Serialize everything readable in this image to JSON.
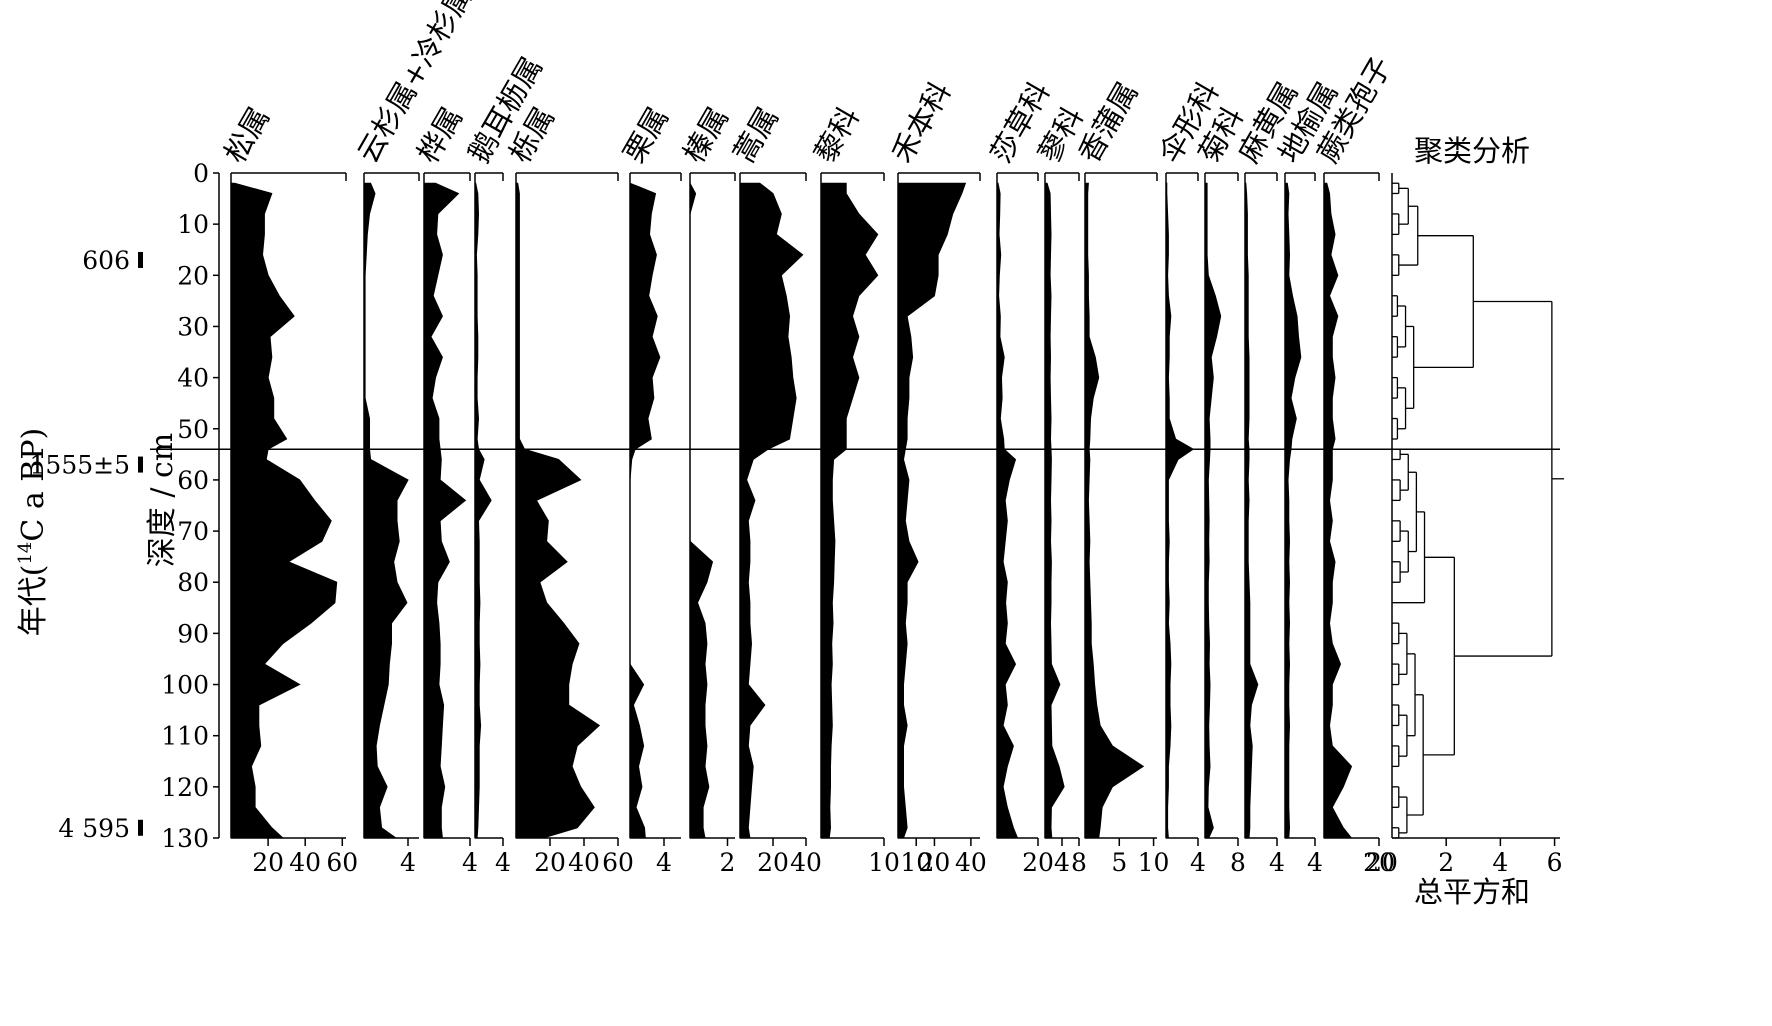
{
  "chart_data": {
    "type": "area",
    "age_axis_label": "年代(¹⁴C a BP)",
    "age_axis_label_parts": [
      "年代(",
      "14",
      "C a BP)"
    ],
    "age_markers": [
      {
        "label": "606",
        "depth": 17
      },
      {
        "label": "1555±5",
        "depth": 57
      },
      {
        "label": "4 595",
        "depth": 128
      }
    ],
    "depth_label": "深度 / cm",
    "depth_ticks": [
      0,
      10,
      20,
      30,
      40,
      50,
      60,
      70,
      80,
      90,
      100,
      110,
      120,
      130
    ],
    "depth_range": [
      0,
      130
    ],
    "zone_boundary_depth": 54,
    "depths": [
      2,
      4,
      8,
      12,
      16,
      20,
      24,
      28,
      32,
      36,
      40,
      44,
      48,
      52,
      54,
      56,
      60,
      64,
      68,
      72,
      76,
      80,
      84,
      88,
      92,
      96,
      100,
      104,
      108,
      112,
      116,
      120,
      124,
      128,
      130
    ],
    "taxa": [
      {
        "name": "松属",
        "xlim": [
          0,
          62
        ],
        "ticks": [
          20,
          40,
          60
        ],
        "values": [
          2,
          22,
          18,
          18,
          17,
          20,
          26,
          34,
          21,
          22,
          20,
          23,
          23,
          30,
          20,
          19,
          37,
          45,
          54,
          49,
          31,
          57,
          56,
          43,
          28,
          18,
          37,
          15,
          15,
          16,
          11,
          13,
          13,
          22,
          28
        ]
      },
      {
        "name": "云杉属+冷杉属",
        "xlim": [
          0,
          5
        ],
        "ticks": [
          4
        ],
        "values": [
          0.6,
          1,
          0.5,
          0.3,
          0.2,
          0.1,
          0.1,
          0.1,
          0.1,
          0.1,
          0.1,
          0.1,
          0.5,
          0.5,
          0.5,
          0.6,
          4,
          3,
          3,
          3.2,
          2.7,
          3,
          3.9,
          2.5,
          2.5,
          2.3,
          2.2,
          1.8,
          1.4,
          1.1,
          1.2,
          2.1,
          1.4,
          1.6,
          2.9
        ]
      },
      {
        "name": "桦属",
        "xlim": [
          0,
          4
        ],
        "ticks": [
          4
        ],
        "values": [
          1,
          3,
          1.2,
          1.1,
          1.6,
          1.2,
          0.8,
          1.6,
          0.6,
          1.6,
          1,
          0.7,
          1.3,
          1.3,
          1.4,
          1.5,
          1.4,
          3.6,
          1.4,
          1.5,
          2.2,
          1.2,
          1.1,
          1.3,
          1.4,
          1.4,
          1.3,
          1.7,
          1.6,
          1.5,
          1.4,
          1.8,
          1.5,
          1.5,
          1.6
        ]
      },
      {
        "name": "鹅耳枥属",
        "xlim": [
          0,
          4
        ],
        "ticks": [
          4
        ],
        "values": [
          0.1,
          0.4,
          0.5,
          0.4,
          0.2,
          0.3,
          0.3,
          0.3,
          0.4,
          0.4,
          0.3,
          0.3,
          0.5,
          0.3,
          0.5,
          1.3,
          0.6,
          2.3,
          0.5,
          0.6,
          0.6,
          0.6,
          0.7,
          0.6,
          0.6,
          0.7,
          0.6,
          0.6,
          0.8,
          0.6,
          0.6,
          0.6,
          0.5,
          0.4,
          0.3
        ]
      },
      {
        "name": "栎属",
        "xlim": [
          0,
          60
        ],
        "ticks": [
          20,
          40,
          60
        ],
        "values": [
          1,
          2,
          2,
          2,
          2,
          2,
          2,
          2,
          2,
          2,
          2,
          2,
          2,
          2,
          5,
          25,
          38,
          12,
          19,
          18,
          30,
          14,
          18,
          28,
          37,
          33,
          31,
          31,
          49,
          36,
          33,
          38,
          46,
          36,
          16
        ]
      },
      {
        "name": "栗属",
        "xlim": [
          0,
          6
        ],
        "ticks": [
          4
        ],
        "values": [
          0,
          3,
          2.5,
          2.3,
          3.1,
          2.6,
          2.2,
          3.2,
          2.6,
          3.5,
          2.6,
          2.8,
          2.1,
          2.5,
          0.6,
          0.2,
          0,
          0,
          0,
          0,
          0,
          0,
          0,
          0,
          0,
          0,
          1.6,
          0.4,
          1.1,
          1.6,
          1,
          1.4,
          0.7,
          1.7,
          1.8
        ]
      },
      {
        "name": "榛属",
        "xlim": [
          0,
          2.4
        ],
        "ticks": [
          2
        ],
        "values": [
          0,
          0.3,
          0,
          0,
          0,
          0,
          0,
          0,
          0,
          0,
          0,
          0,
          0,
          0,
          0,
          0,
          0,
          0,
          0,
          0,
          1.2,
          0.9,
          0.4,
          0.8,
          0.9,
          0.8,
          0.9,
          0.8,
          0.8,
          0.9,
          0.8,
          1,
          0.7,
          0.7,
          0.8
        ]
      },
      {
        "name": "蒿属",
        "xlim": [
          0,
          40
        ],
        "ticks": [
          20,
          40
        ],
        "values": [
          12,
          20,
          25,
          22,
          38,
          25,
          28,
          30,
          29,
          31,
          32,
          34,
          32,
          30,
          17,
          8,
          4,
          9,
          5,
          6,
          6,
          5,
          6,
          6,
          7,
          6,
          5,
          15,
          6,
          5,
          8,
          7,
          6,
          5,
          6
        ]
      },
      {
        "name": "藜科",
        "xlim": [
          0,
          10
        ],
        "ticks": [
          10
        ],
        "values": [
          4,
          4,
          6,
          9,
          7,
          9,
          6,
          5,
          6,
          5,
          6,
          5,
          4,
          4,
          4,
          2,
          1.8,
          1.8,
          2,
          2.2,
          2.1,
          2,
          1.8,
          1.9,
          1.7,
          1.8,
          1.6,
          1.7,
          1.8,
          1.6,
          1.5,
          1.5,
          1.4,
          1.5,
          1.3
        ]
      },
      {
        "name": "禾本科",
        "xlim": [
          0,
          45
        ],
        "ticks": [
          10,
          20,
          40
        ],
        "values": [
          37,
          35,
          30,
          27,
          22,
          22,
          20,
          5,
          7,
          8,
          6,
          6,
          5,
          5,
          4,
          3,
          6,
          5,
          4,
          6,
          11,
          5,
          5,
          4,
          5,
          4,
          3,
          3,
          5,
          3,
          3,
          3,
          4,
          5,
          3
        ]
      },
      {
        "name": "莎草科",
        "xlim": [
          0,
          20
        ],
        "ticks": [
          20
        ],
        "values": [
          0.5,
          1.5,
          1.3,
          1,
          1.8,
          1.1,
          0.8,
          1.6,
          1.4,
          3.5,
          2.2,
          2.5,
          1.6,
          3.2,
          3.5,
          9,
          6,
          4,
          5,
          4,
          3,
          5,
          4.2,
          5,
          4,
          9,
          4,
          5,
          3,
          8,
          5,
          3,
          5,
          8,
          10
        ]
      },
      {
        "name": "蓼科",
        "xlim": [
          0,
          8
        ],
        "ticks": [
          4,
          8
        ],
        "values": [
          0.5,
          1.2,
          1.3,
          1.4,
          1.3,
          1.2,
          1.4,
          1.3,
          1.2,
          1.3,
          1.2,
          1.3,
          1.4,
          1.3,
          1.4,
          1.5,
          1.4,
          1.3,
          1.4,
          1.3,
          1.5,
          1.4,
          1.4,
          1.3,
          1.4,
          1.5,
          3.5,
          1.4,
          1.5,
          1.6,
          3.3,
          4.5,
          1.5,
          1.4,
          1.6
        ]
      },
      {
        "name": "香蒲属",
        "xlim": [
          0,
          10.5
        ],
        "ticks": [
          5,
          10
        ],
        "values": [
          0.5,
          0.4,
          0.4,
          0.4,
          0.4,
          0.5,
          0.5,
          0.6,
          0.6,
          1.5,
          2,
          1.2,
          0.8,
          0.7,
          0.6,
          0.7,
          0.6,
          0.5,
          0.6,
          0.7,
          0.6,
          0.7,
          0.8,
          0.9,
          0.9,
          1.2,
          1.4,
          1.7,
          2.2,
          4,
          8.5,
          4,
          2.5,
          2.2,
          2
        ]
      },
      {
        "name": "伞形科",
        "xlim": [
          0,
          4
        ],
        "ticks": [
          4
        ],
        "values": [
          0.1,
          0.1,
          0.2,
          0.3,
          0.3,
          0.2,
          0.3,
          0.6,
          0.4,
          0.4,
          0.3,
          0.4,
          0.4,
          1.2,
          3.4,
          1.5,
          0.3,
          0.3,
          0.3,
          0.4,
          0.3,
          0.3,
          0.4,
          0.3,
          0.5,
          0.6,
          0.5,
          0.5,
          0.6,
          0.5,
          0.3,
          0.3,
          0.2,
          0.2,
          0.3
        ]
      },
      {
        "name": "菊科",
        "xlim": [
          0,
          8
        ],
        "ticks": [
          8
        ],
        "values": [
          0.5,
          0.5,
          0.5,
          0.5,
          0.5,
          0.8,
          2.5,
          3.8,
          2.8,
          1.5,
          2,
          1.5,
          1,
          1.2,
          1.2,
          1.1,
          0.8,
          0.9,
          1,
          0.9,
          1,
          0.8,
          0.8,
          0.9,
          1.1,
          1,
          1.2,
          1.1,
          0.9,
          1,
          1.2,
          0.8,
          0.7,
          2,
          0.9
        ]
      },
      {
        "name": "麻黄属",
        "xlim": [
          0,
          4
        ],
        "ticks": [
          4
        ],
        "values": [
          0.1,
          0.2,
          0.3,
          0.3,
          0.3,
          0.4,
          0.4,
          0.4,
          0.4,
          0.5,
          0.5,
          0.5,
          0.5,
          0.4,
          0.5,
          0.5,
          0.4,
          0.5,
          0.4,
          0.4,
          0.4,
          0.5,
          0.6,
          0.6,
          0.6,
          0.6,
          1.6,
          0.8,
          0.6,
          0.9,
          0.8,
          0.7,
          0.6,
          0.6,
          0.5
        ]
      },
      {
        "name": "地榆属",
        "xlim": [
          0,
          4
        ],
        "ticks": [
          4
        ],
        "values": [
          0.3,
          0.5,
          0.4,
          0.5,
          0.6,
          0.5,
          1,
          1.6,
          1.8,
          2.1,
          1.3,
          0.8,
          1.5,
          0.9,
          0.8,
          0.6,
          0.4,
          0.5,
          0.5,
          0.6,
          0.5,
          0.6,
          0.5,
          0.6,
          0.5,
          0.6,
          0.5,
          0.5,
          0.6,
          0.5,
          0.5,
          0.5,
          0.5,
          0.6,
          0.5
        ]
      },
      {
        "name": "蕨类孢子",
        "xlim": [
          0,
          20
        ],
        "ticks": [
          20
        ],
        "values": [
          1,
          2,
          2.5,
          4,
          2.5,
          5,
          2,
          5,
          3,
          3,
          4,
          3,
          3,
          4,
          3,
          3,
          3,
          2,
          3,
          2,
          4,
          3,
          3,
          2,
          3,
          6,
          3,
          3,
          2,
          3,
          10,
          7,
          3,
          7,
          10
        ]
      }
    ],
    "cluster_title": "聚类分析",
    "cluster_xlabel": "总平方和",
    "cluster_xticks": [
      2,
      4,
      6
    ],
    "cluster_xlim": [
      0,
      6.2
    ]
  }
}
